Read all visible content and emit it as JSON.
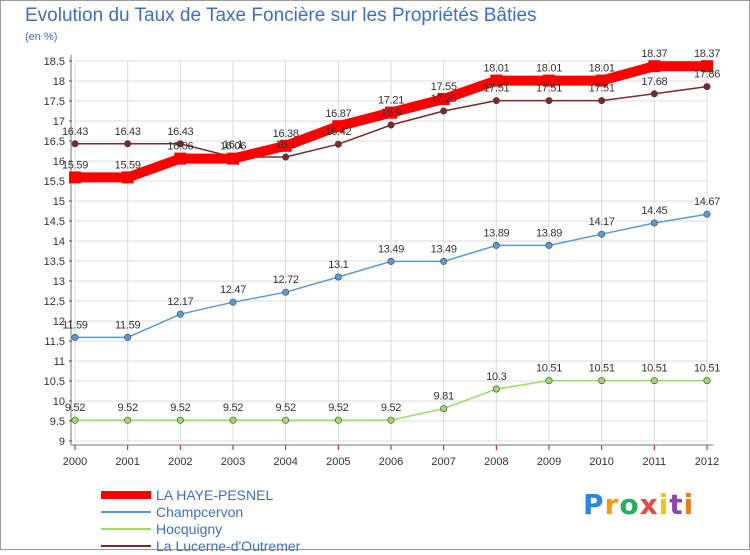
{
  "chart_data": {
    "type": "line",
    "title": "Evolution du Taux de Taxe Foncière sur les Propriétés Bâties",
    "unit_label": "(en %)",
    "categories": [
      "2000",
      "2001",
      "2002",
      "2003",
      "2004",
      "2005",
      "2006",
      "2007",
      "2008",
      "2009",
      "2010",
      "2011",
      "2012"
    ],
    "ylim": [
      9,
      18.5
    ],
    "yticks": [
      "9",
      "9.5",
      "10",
      "10.5",
      "11",
      "11.5",
      "12",
      "12.5",
      "13",
      "13.5",
      "14",
      "14.5",
      "15",
      "15.5",
      "16",
      "16.5",
      "17",
      "17.5",
      "18",
      "18.5"
    ],
    "grid": true,
    "legend_position": "bottom-left",
    "series": [
      {
        "name": "LA HAYE-PESNEL",
        "color": "#ff0000",
        "values": [
          15.59,
          15.59,
          16.06,
          16.06,
          16.38,
          16.87,
          17.21,
          17.55,
          18.01,
          18.01,
          18.01,
          18.37,
          18.37
        ]
      },
      {
        "name": "Champcervon",
        "color": "#5b9bd5",
        "values": [
          11.59,
          11.59,
          12.17,
          12.47,
          12.72,
          13.1,
          13.49,
          13.49,
          13.89,
          13.89,
          14.17,
          14.45,
          14.67
        ]
      },
      {
        "name": "Hocquigny",
        "color": "#99dd66",
        "values": [
          9.52,
          9.52,
          9.52,
          9.52,
          9.52,
          9.52,
          9.52,
          9.81,
          10.3,
          10.51,
          10.51,
          10.51,
          10.51
        ]
      },
      {
        "name": "La Lucerne-d'Outremer",
        "color": "#7a2a2a",
        "values": [
          16.43,
          16.43,
          16.43,
          16.1,
          16.1,
          16.42,
          16.9,
          17.25,
          17.51,
          17.51,
          17.51,
          17.68,
          17.86
        ]
      }
    ]
  },
  "logo": {
    "letters": [
      "P",
      "r",
      "o",
      "x",
      "i",
      "t",
      "i"
    ],
    "colors": [
      "#2e86de",
      "#f39c12",
      "#27ae60",
      "#e74c3c",
      "#f1c40f",
      "#8e44ad",
      "#e67e22"
    ]
  }
}
